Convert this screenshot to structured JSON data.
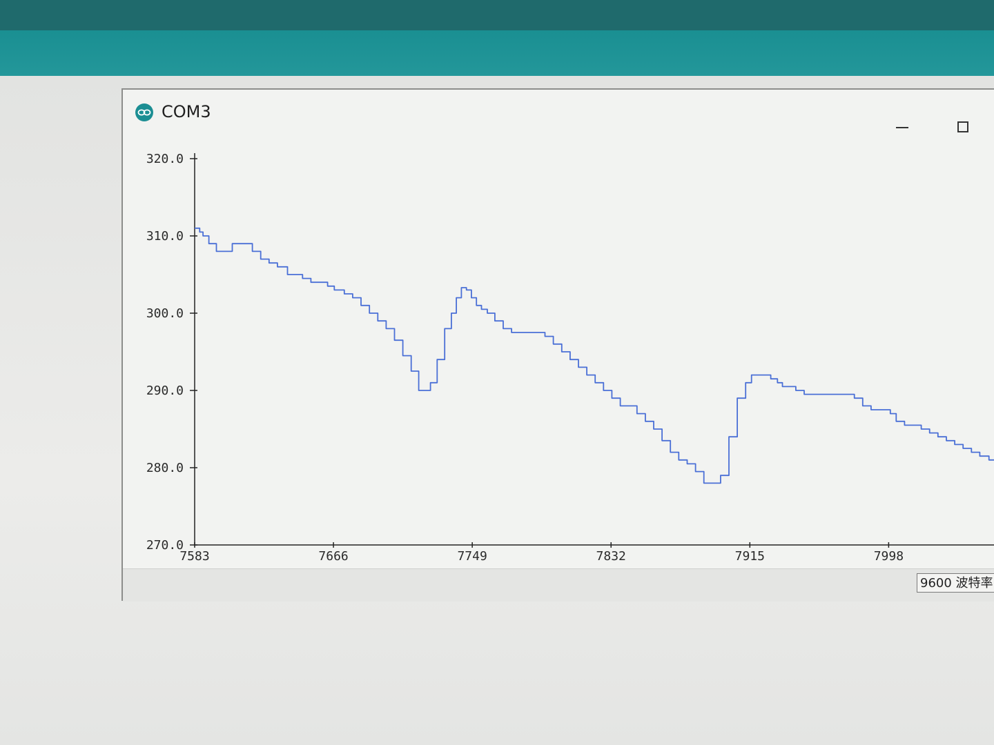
{
  "window": {
    "title": "COM3",
    "icon": "arduino-infinity-icon",
    "controls": [
      "minimize-icon",
      "maximize-icon"
    ]
  },
  "footer": {
    "baud_rate": "9600 波特率"
  },
  "colors": {
    "line": "#4a6fd6",
    "titlebar_teal": "#1a8f92",
    "window_bg": "#f2f3f1"
  },
  "chart_data": {
    "type": "line",
    "title": "",
    "xlabel": "",
    "ylabel": "",
    "ylim": [
      270,
      320
    ],
    "xlim": [
      7583,
      8061
    ],
    "y_ticks": [
      "320.0",
      "310.0",
      "300.0",
      "290.0",
      "280.0",
      "270.0"
    ],
    "x_ticks": [
      "7583",
      "7666",
      "7749",
      "7832",
      "7915",
      "7998"
    ],
    "grid": false,
    "series": [
      {
        "x": [
          7583,
          7585,
          7587,
          7589,
          7594,
          7598,
          7603,
          7608,
          7613,
          7615,
          7620,
          7625,
          7630,
          7635,
          7637,
          7640,
          7642,
          7645,
          7650,
          7655,
          7660,
          7665,
          7668,
          7670,
          7675,
          7680,
          7685,
          7690,
          7695,
          7700,
          7705,
          7710,
          7715,
          7719,
          7722,
          7726,
          7730,
          7735,
          7738,
          7741,
          7744,
          7747,
          7750,
          7753,
          7756,
          7760,
          7765,
          7770,
          7775,
          7780,
          7785,
          7790,
          7795,
          7800,
          7805,
          7810,
          7815,
          7820,
          7825,
          7830,
          7835,
          7840,
          7845,
          7850,
          7855,
          7860,
          7865,
          7870,
          7875,
          7880,
          7885,
          7890,
          7895,
          7900,
          7905,
          7910,
          7915,
          7917,
          7920,
          7925,
          7930,
          7933,
          7936,
          7940,
          7945,
          7950,
          7955,
          7960,
          7965,
          7970,
          7975,
          7980,
          7985,
          7990,
          7995,
          7998,
          8000,
          8005,
          8010,
          8015,
          8020,
          8025,
          8030,
          8035,
          8040,
          8045,
          8050,
          8055,
          8061
        ],
        "y": [
          311,
          311,
          310.5,
          310,
          309,
          308,
          308,
          309,
          309,
          309,
          308,
          307,
          306.5,
          306,
          306,
          305,
          305,
          305,
          304.5,
          304,
          304,
          303.5,
          303,
          303,
          302.5,
          302,
          301,
          300,
          299,
          298,
          296.5,
          294.5,
          292.5,
          290,
          290,
          291,
          294,
          298,
          300,
          302,
          303.3,
          303,
          302,
          301,
          300.5,
          300,
          299,
          298,
          297.5,
          297.5,
          297.5,
          297.5,
          297,
          296,
          295,
          294,
          293,
          292,
          291,
          290,
          289,
          288,
          288,
          287,
          286,
          285,
          283.5,
          282,
          281,
          280.5,
          279.5,
          278,
          278,
          279,
          284,
          289,
          291,
          292,
          292,
          292,
          291.5,
          291,
          290.5,
          290.5,
          290,
          289.5,
          289.5,
          289.5,
          289.5,
          289.5,
          289.5,
          289,
          288,
          287.5,
          287.5,
          287.5,
          287,
          286,
          285.5,
          285.5,
          285,
          284.5,
          284,
          283.5,
          283,
          282.5,
          282,
          281.5,
          281
        ]
      }
    ]
  }
}
